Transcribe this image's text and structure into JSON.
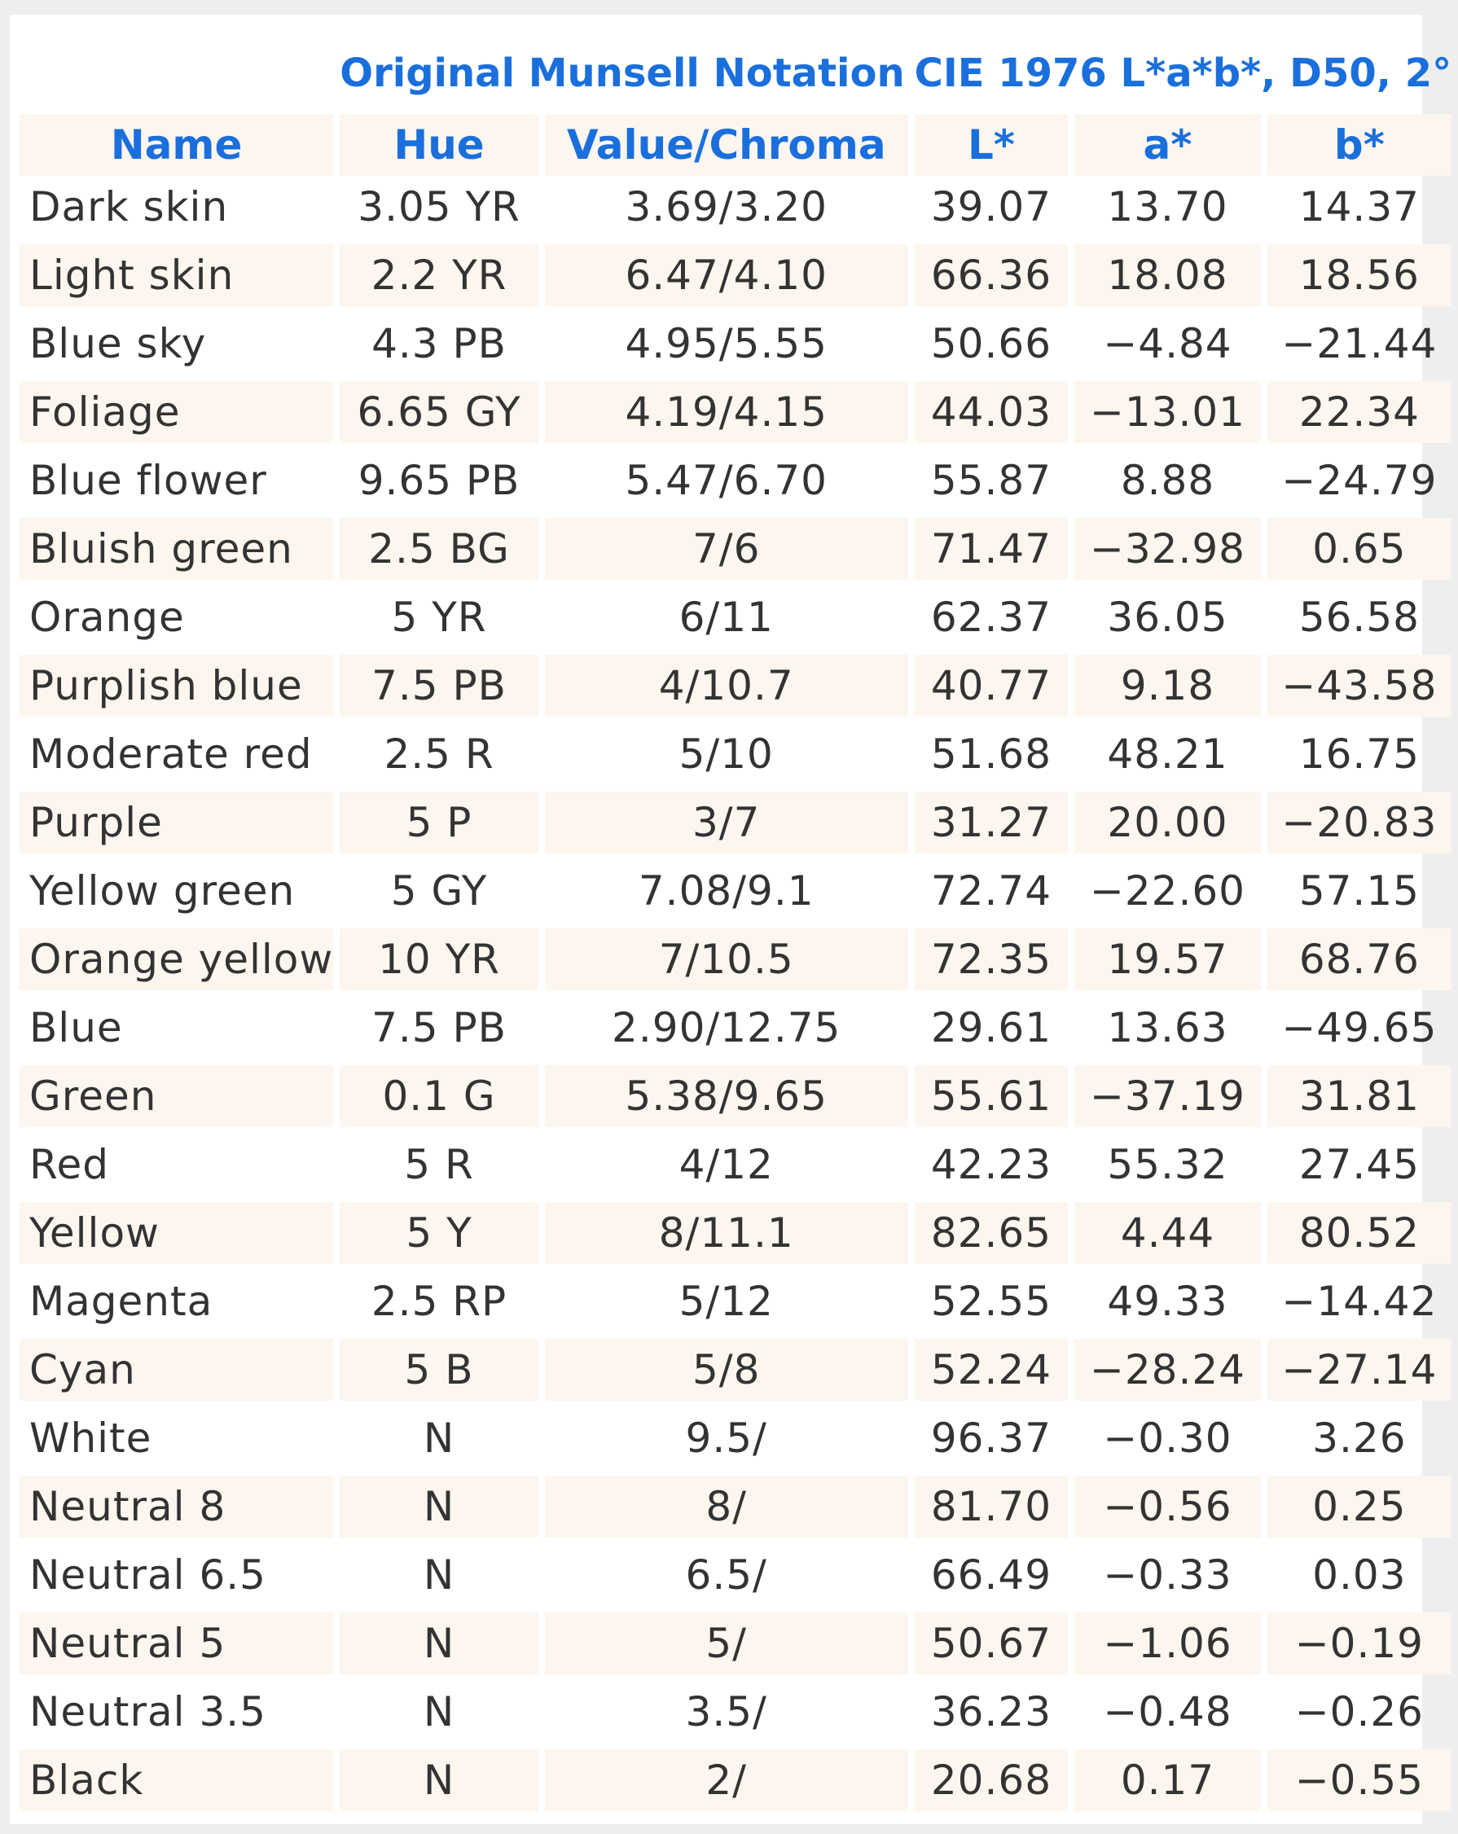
{
  "header": {
    "munsell_group": "Original Munsell Notation",
    "cie_group": "CIE 1976 L*a*b*, D50, 2°",
    "columns": [
      "Name",
      "Hue",
      "Value/Chroma",
      "L*",
      "a*",
      "b*"
    ]
  },
  "rows": [
    {
      "name": "Dark skin",
      "hue": "3.05 YR",
      "vc": "3.69/3.20",
      "L": "39.07",
      "a": "13.70",
      "b": "14.37"
    },
    {
      "name": "Light skin",
      "hue": "2.2 YR",
      "vc": "6.47/4.10",
      "L": "66.36",
      "a": "18.08",
      "b": "18.56"
    },
    {
      "name": "Blue sky",
      "hue": "4.3 PB",
      "vc": "4.95/5.55",
      "L": "50.66",
      "a": "−4.84",
      "b": "−21.44"
    },
    {
      "name": "Foliage",
      "hue": "6.65 GY",
      "vc": "4.19/4.15",
      "L": "44.03",
      "a": "−13.01",
      "b": "22.34"
    },
    {
      "name": "Blue flower",
      "hue": "9.65 PB",
      "vc": "5.47/6.70",
      "L": "55.87",
      "a": "8.88",
      "b": "−24.79"
    },
    {
      "name": "Bluish green",
      "hue": "2.5 BG",
      "vc": "7/6",
      "L": "71.47",
      "a": "−32.98",
      "b": "0.65"
    },
    {
      "name": "Orange",
      "hue": "5 YR",
      "vc": "6/11",
      "L": "62.37",
      "a": "36.05",
      "b": "56.58"
    },
    {
      "name": "Purplish blue",
      "hue": "7.5 PB",
      "vc": "4/10.7",
      "L": "40.77",
      "a": "9.18",
      "b": "−43.58"
    },
    {
      "name": "Moderate red",
      "hue": "2.5 R",
      "vc": "5/10",
      "L": "51.68",
      "a": "48.21",
      "b": "16.75"
    },
    {
      "name": "Purple",
      "hue": "5 P",
      "vc": "3/7",
      "L": "31.27",
      "a": "20.00",
      "b": "−20.83"
    },
    {
      "name": "Yellow green",
      "hue": "5 GY",
      "vc": "7.08/9.1",
      "L": "72.74",
      "a": "−22.60",
      "b": "57.15"
    },
    {
      "name": "Orange yellow",
      "hue": "10 YR",
      "vc": "7/10.5",
      "L": "72.35",
      "a": "19.57",
      "b": "68.76"
    },
    {
      "name": "Blue",
      "hue": "7.5 PB",
      "vc": "2.90/12.75",
      "L": "29.61",
      "a": "13.63",
      "b": "−49.65"
    },
    {
      "name": "Green",
      "hue": "0.1 G",
      "vc": "5.38/9.65",
      "L": "55.61",
      "a": "−37.19",
      "b": "31.81"
    },
    {
      "name": "Red",
      "hue": "5 R",
      "vc": "4/12",
      "L": "42.23",
      "a": "55.32",
      "b": "27.45"
    },
    {
      "name": "Yellow",
      "hue": "5 Y",
      "vc": "8/11.1",
      "L": "82.65",
      "a": "4.44",
      "b": "80.52"
    },
    {
      "name": "Magenta",
      "hue": "2.5 RP",
      "vc": "5/12",
      "L": "52.55",
      "a": "49.33",
      "b": "−14.42"
    },
    {
      "name": "Cyan",
      "hue": "5 B",
      "vc": "5/8",
      "L": "52.24",
      "a": "−28.24",
      "b": "−27.14"
    },
    {
      "name": "White",
      "hue": "N",
      "vc": "9.5/",
      "L": "96.37",
      "a": "−0.30",
      "b": "3.26"
    },
    {
      "name": "Neutral 8",
      "hue": "N",
      "vc": "8/",
      "L": "81.70",
      "a": "−0.56",
      "b": "0.25"
    },
    {
      "name": "Neutral 6.5",
      "hue": "N",
      "vc": "6.5/",
      "L": "66.49",
      "a": "−0.33",
      "b": "0.03"
    },
    {
      "name": "Neutral 5",
      "hue": "N",
      "vc": "5/",
      "L": "50.67",
      "a": "−1.06",
      "b": "−0.19"
    },
    {
      "name": "Neutral 3.5",
      "hue": "N",
      "vc": "3.5/",
      "L": "36.23",
      "a": "−0.48",
      "b": "−0.26"
    },
    {
      "name": "Black",
      "hue": "N",
      "vc": "2/",
      "L": "20.68",
      "a": "0.17",
      "b": "−0.55"
    }
  ],
  "colors": {
    "header_text": "#1a6fdc",
    "body_text": "#333333",
    "stripe": "#fdf6ee",
    "page_bg": "#eeeeee"
  }
}
